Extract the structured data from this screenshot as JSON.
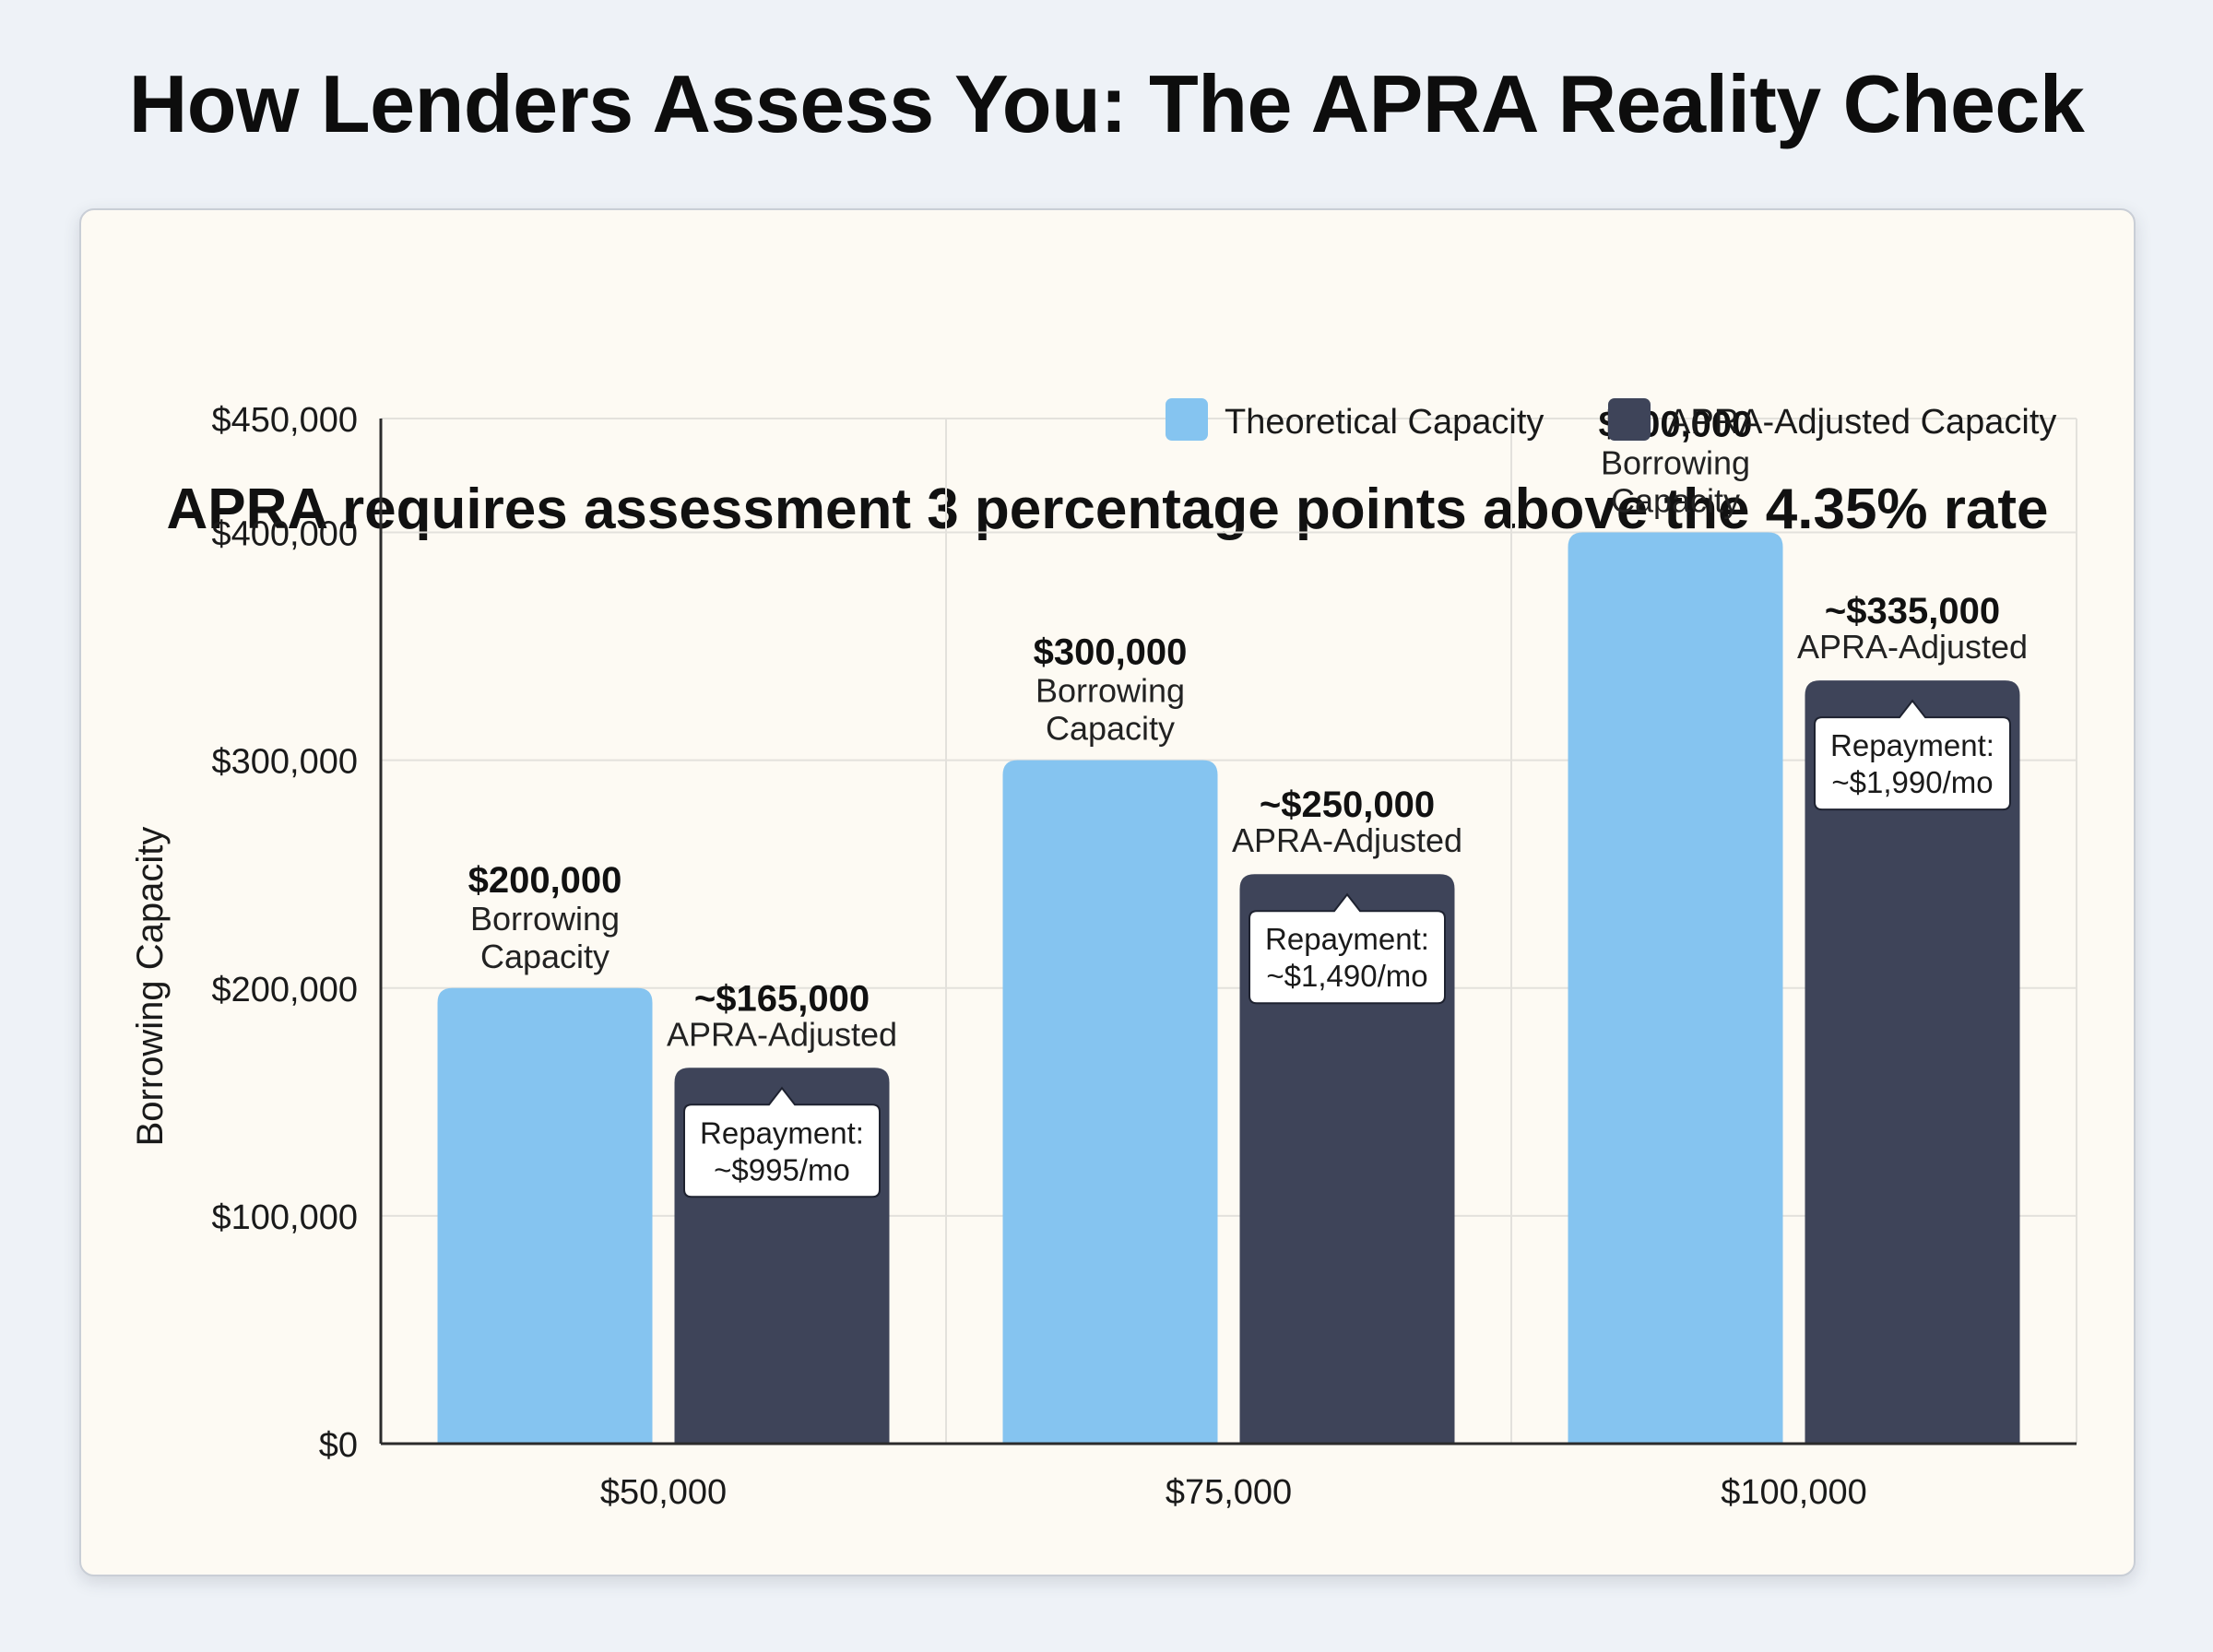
{
  "header": {
    "title": "How Lenders Assess You: The APRA Reality Check"
  },
  "colors": {
    "theoretical": "#85c4f0",
    "adjusted": "#3e4459",
    "grid": "#e3e1dc",
    "axis": "#2b2b2b"
  },
  "chart_data": {
    "type": "bar",
    "title": "APRA requires assessment 3 percentage points above the 4.35% rate",
    "xlabel": "",
    "ylabel": "Borrowing Capacity",
    "ylim": [
      0,
      450000
    ],
    "yticks": [
      0,
      100000,
      200000,
      300000,
      400000,
      450000
    ],
    "ytick_labels": [
      "$0",
      "$100,000",
      "$200,000",
      "$300,000",
      "$400,000",
      "$450,000"
    ],
    "categories": [
      "$50,000",
      "$75,000",
      "$100,000"
    ],
    "grid": true,
    "legend_position": "top-right",
    "series": [
      {
        "name": "Theoretical Capacity",
        "values": [
          200000,
          300000,
          400000
        ],
        "value_labels": [
          "$200,000",
          "$300,000",
          "$400,000"
        ],
        "sub_label": [
          "Borrowing",
          "Capacity"
        ]
      },
      {
        "name": "APRA-Adjusted Capacity",
        "values": [
          165000,
          250000,
          335000
        ],
        "value_labels": [
          "~$165,000",
          "~$250,000",
          "~$335,000"
        ],
        "sub_label": [
          "APRA-Adjusted"
        ],
        "callouts": [
          [
            "Repayment:",
            "~$995/mo"
          ],
          [
            "Repayment:",
            "~$1,490/mo"
          ],
          [
            "Repayment:",
            "~$1,990/mo"
          ]
        ]
      }
    ]
  }
}
